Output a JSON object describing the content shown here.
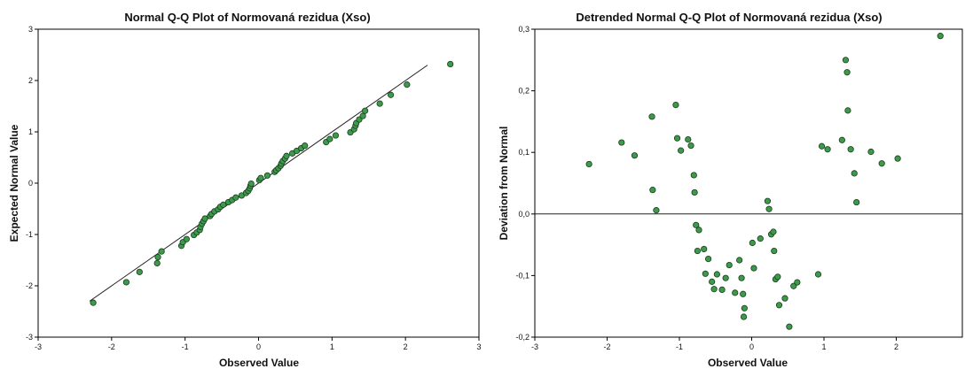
{
  "colors": {
    "marker_fill": "#3c9a4a",
    "marker_stroke": "#1a3d1f",
    "line": "#222222",
    "frame": "#000000"
  },
  "chart_data": [
    {
      "type": "scatter",
      "title": "Normal Q-Q Plot of Normovaná rezidua (Xso)",
      "xlabel": "Observed Value",
      "ylabel": "Expected Normal Value",
      "xlim": [
        -3,
        3
      ],
      "ylim": [
        -3,
        3
      ],
      "xticks": [
        "-3",
        "-2",
        "-1",
        "0",
        "1",
        "2",
        "3"
      ],
      "yticks": [
        "-3",
        "-2",
        "-1",
        "0",
        "1",
        "2",
        "3"
      ],
      "reference_line": {
        "from": [
          -2.3,
          -2.3
        ],
        "to": [
          2.3,
          2.3
        ]
      },
      "points": [
        [
          -2.25,
          -2.33
        ],
        [
          -1.8,
          -1.93
        ],
        [
          -1.62,
          -1.73
        ],
        [
          -1.38,
          -1.56
        ],
        [
          -1.37,
          -1.44
        ],
        [
          -1.32,
          -1.33
        ],
        [
          -1.05,
          -1.22
        ],
        [
          -1.03,
          -1.15
        ],
        [
          -0.98,
          -1.09
        ],
        [
          -0.88,
          -1.01
        ],
        [
          -0.84,
          -0.96
        ],
        [
          -0.8,
          -0.91
        ],
        [
          -0.79,
          -0.85
        ],
        [
          -0.77,
          -0.79
        ],
        [
          -0.75,
          -0.74
        ],
        [
          -0.73,
          -0.69
        ],
        [
          -0.66,
          -0.64
        ],
        [
          -0.64,
          -0.6
        ],
        [
          -0.6,
          -0.55
        ],
        [
          -0.55,
          -0.51
        ],
        [
          -0.52,
          -0.46
        ],
        [
          -0.48,
          -0.42
        ],
        [
          -0.41,
          -0.37
        ],
        [
          -0.36,
          -0.33
        ],
        [
          -0.31,
          -0.28
        ],
        [
          -0.23,
          -0.24
        ],
        [
          -0.17,
          -0.19
        ],
        [
          -0.14,
          -0.15
        ],
        [
          -0.12,
          -0.1
        ],
        [
          -0.11,
          -0.05
        ],
        [
          -0.1,
          -0.01
        ],
        [
          0.01,
          0.06
        ],
        [
          0.03,
          0.1
        ],
        [
          0.12,
          0.15
        ],
        [
          0.22,
          0.22
        ],
        [
          0.24,
          0.25
        ],
        [
          0.27,
          0.29
        ],
        [
          0.3,
          0.34
        ],
        [
          0.31,
          0.38
        ],
        [
          0.33,
          0.43
        ],
        [
          0.36,
          0.48
        ],
        [
          0.38,
          0.53
        ],
        [
          0.46,
          0.58
        ],
        [
          0.52,
          0.63
        ],
        [
          0.58,
          0.68
        ],
        [
          0.63,
          0.73
        ],
        [
          0.92,
          0.8
        ],
        [
          0.97,
          0.86
        ],
        [
          1.05,
          0.93
        ],
        [
          1.25,
          0.99
        ],
        [
          1.3,
          1.05
        ],
        [
          1.32,
          1.12
        ],
        [
          1.33,
          1.17
        ],
        [
          1.37,
          1.24
        ],
        [
          1.42,
          1.31
        ],
        [
          1.45,
          1.41
        ],
        [
          1.65,
          1.55
        ],
        [
          1.8,
          1.72
        ],
        [
          2.02,
          1.92
        ],
        [
          2.61,
          2.32
        ]
      ]
    },
    {
      "type": "scatter",
      "title": "Detrended Normal Q-Q Plot of Normovaná rezidua (Xso)",
      "xlabel": "Observed Value",
      "ylabel": "Deviation from Normal",
      "xlim": [
        -3,
        3
      ],
      "ylim": [
        -0.2,
        0.3
      ],
      "xticks": [
        "-3",
        "-2",
        "-1",
        "0",
        "1",
        "2"
      ],
      "xtick_values": [
        -3,
        -2,
        -1,
        0,
        1,
        2
      ],
      "yticks": [
        "-0,2",
        "-0,1",
        "0,0",
        "0,1",
        "0,2",
        "0,3"
      ],
      "ytick_values": [
        -0.2,
        -0.1,
        0.0,
        0.1,
        0.2,
        0.3
      ],
      "reference_line_y": 0,
      "points": [
        [
          -2.25,
          0.081
        ],
        [
          -1.8,
          0.116
        ],
        [
          -1.62,
          0.095
        ],
        [
          -1.38,
          0.158
        ],
        [
          -1.37,
          0.039
        ],
        [
          -1.32,
          0.006
        ],
        [
          -1.05,
          0.177
        ],
        [
          -1.03,
          0.123
        ],
        [
          -0.98,
          0.103
        ],
        [
          -0.88,
          0.121
        ],
        [
          -0.84,
          0.111
        ],
        [
          -0.8,
          0.063
        ],
        [
          -0.79,
          0.035
        ],
        [
          -0.77,
          -0.018
        ],
        [
          -0.75,
          -0.06
        ],
        [
          -0.73,
          -0.026
        ],
        [
          -0.66,
          -0.057
        ],
        [
          -0.64,
          -0.097
        ],
        [
          -0.6,
          -0.073
        ],
        [
          -0.55,
          -0.11
        ],
        [
          -0.52,
          -0.122
        ],
        [
          -0.48,
          -0.098
        ],
        [
          -0.41,
          -0.123
        ],
        [
          -0.36,
          -0.104
        ],
        [
          -0.31,
          -0.083
        ],
        [
          -0.23,
          -0.128
        ],
        [
          -0.17,
          -0.075
        ],
        [
          -0.14,
          -0.104
        ],
        [
          -0.12,
          -0.13
        ],
        [
          -0.11,
          -0.167
        ],
        [
          -0.1,
          -0.153
        ],
        [
          0.01,
          -0.047
        ],
        [
          0.03,
          -0.088
        ],
        [
          0.12,
          -0.04
        ],
        [
          0.22,
          0.021
        ],
        [
          0.24,
          0.008
        ],
        [
          0.27,
          -0.033
        ],
        [
          0.3,
          -0.029
        ],
        [
          0.31,
          -0.06
        ],
        [
          0.33,
          -0.106
        ],
        [
          0.36,
          -0.102
        ],
        [
          0.38,
          -0.148
        ],
        [
          0.46,
          -0.137
        ],
        [
          0.52,
          -0.183
        ],
        [
          0.58,
          -0.117
        ],
        [
          0.63,
          -0.111
        ],
        [
          0.92,
          -0.098
        ],
        [
          0.97,
          0.11
        ],
        [
          1.05,
          0.105
        ],
        [
          1.25,
          0.12
        ],
        [
          1.3,
          0.25
        ],
        [
          1.32,
          0.23
        ],
        [
          1.33,
          0.168
        ],
        [
          1.37,
          0.105
        ],
        [
          1.42,
          0.066
        ],
        [
          1.45,
          0.019
        ],
        [
          1.65,
          0.101
        ],
        [
          1.8,
          0.082
        ],
        [
          2.02,
          0.09
        ],
        [
          2.61,
          0.289
        ]
      ]
    }
  ]
}
